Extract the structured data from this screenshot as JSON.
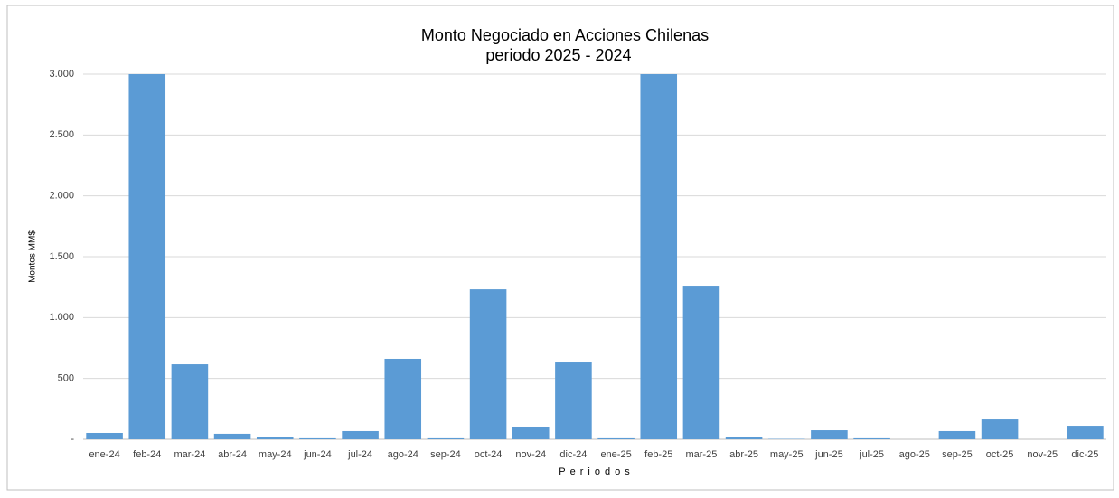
{
  "chart_data": {
    "type": "bar",
    "title": "Monto Negociado en Acciones Chilenas",
    "subtitle": "periodo 2025 - 2024",
    "y_label": "Montos MM$",
    "x_label": "Periodos",
    "categories": [
      "ene-24",
      "feb-24",
      "mar-24",
      "abr-24",
      "may-24",
      "jun-24",
      "jul-24",
      "ago-24",
      "sep-24",
      "oct-24",
      "nov-24",
      "dic-24",
      "ene-25",
      "feb-25",
      "mar-25",
      "abr-25",
      "may-25",
      "jun-25",
      "jul-25",
      "ago-25",
      "sep-25",
      "oct-25",
      "nov-25",
      "dic-25"
    ],
    "values": [
      52,
      3000,
      616,
      45,
      20,
      8,
      67,
      661,
      8,
      1232,
      104,
      631,
      8,
      3000,
      1262,
      22,
      3,
      74,
      8,
      0,
      67,
      163,
      0,
      111
    ],
    "color": "#5b9bd5",
    "ylim": [
      0,
      3000
    ],
    "yticks": [
      {
        "value": 0,
        "label": "-"
      },
      500,
      {
        "value": 1000,
        "label": "1.000"
      },
      {
        "value": 1500,
        "label": "1.500"
      },
      {
        "value": 2000,
        "label": "2.000"
      },
      {
        "value": 2500,
        "label": "2.500"
      },
      {
        "value": 3000,
        "label": "3.000"
      }
    ],
    "grid": true
  }
}
